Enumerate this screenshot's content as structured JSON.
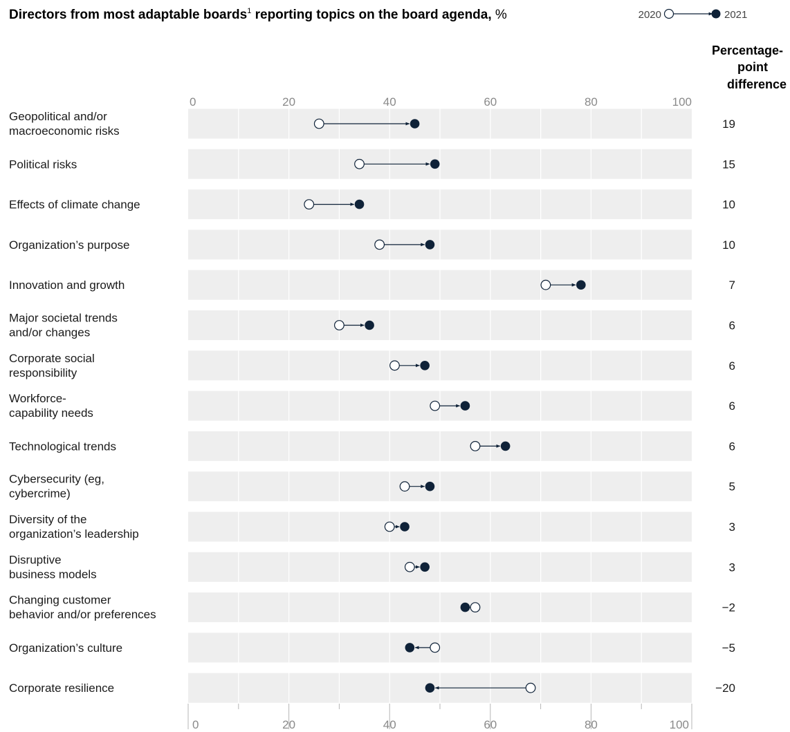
{
  "chart_data": {
    "type": "dumbbell",
    "title": "Directors from most adaptable boards",
    "title_sup": "1",
    "title_rest": " reporting topics on the board agenda,",
    "title_unit": "%",
    "legend": {
      "start_label": "2020",
      "end_label": "2021",
      "placement": "top-right"
    },
    "diff_header": [
      "Percentage-",
      "point",
      "difference"
    ],
    "xlim": [
      0,
      100
    ],
    "x_ticks": [
      0,
      20,
      40,
      60,
      80,
      100
    ],
    "grid": true,
    "colors": {
      "start_fill": "#ffffff",
      "end_fill": "#0f2238",
      "row_band": "#eeeeee",
      "line": "#0f2238"
    },
    "categories": [
      {
        "lines": [
          "Geopolitical and/or",
          "macroeconomic risks"
        ],
        "y2020": 26,
        "y2021": 45,
        "diff": "19"
      },
      {
        "lines": [
          "Political risks"
        ],
        "y2020": 34,
        "y2021": 49,
        "diff": "15"
      },
      {
        "lines": [
          "Effects of climate change"
        ],
        "y2020": 24,
        "y2021": 34,
        "diff": "10"
      },
      {
        "lines": [
          "Organization’s purpose"
        ],
        "y2020": 38,
        "y2021": 48,
        "diff": "10"
      },
      {
        "lines": [
          "Innovation and growth"
        ],
        "y2020": 71,
        "y2021": 78,
        "diff": "7"
      },
      {
        "lines": [
          "Major societal trends",
          "and/or changes"
        ],
        "y2020": 30,
        "y2021": 36,
        "diff": "6"
      },
      {
        "lines": [
          "Corporate social",
          "responsibility"
        ],
        "y2020": 41,
        "y2021": 47,
        "diff": "6"
      },
      {
        "lines": [
          "Workforce-",
          "capability needs"
        ],
        "y2020": 49,
        "y2021": 55,
        "diff": "6"
      },
      {
        "lines": [
          "Technological trends"
        ],
        "y2020": 57,
        "y2021": 63,
        "diff": "6"
      },
      {
        "lines": [
          "Cybersecurity (eg,",
          "cybercrime)"
        ],
        "y2020": 43,
        "y2021": 48,
        "diff": "5"
      },
      {
        "lines": [
          "Diversity of the",
          "organization’s leadership"
        ],
        "y2020": 40,
        "y2021": 43,
        "diff": "3"
      },
      {
        "lines": [
          "Disruptive",
          "business models"
        ],
        "y2020": 44,
        "y2021": 47,
        "diff": "3"
      },
      {
        "lines": [
          "Changing customer",
          "behavior and/or preferences"
        ],
        "y2020": 57,
        "y2021": 55,
        "diff": "−2"
      },
      {
        "lines": [
          "Organization’s culture"
        ],
        "y2020": 49,
        "y2021": 44,
        "diff": "−5"
      },
      {
        "lines": [
          "Corporate resilience"
        ],
        "y2020": 68,
        "y2021": 48,
        "diff": "−20"
      }
    ]
  }
}
